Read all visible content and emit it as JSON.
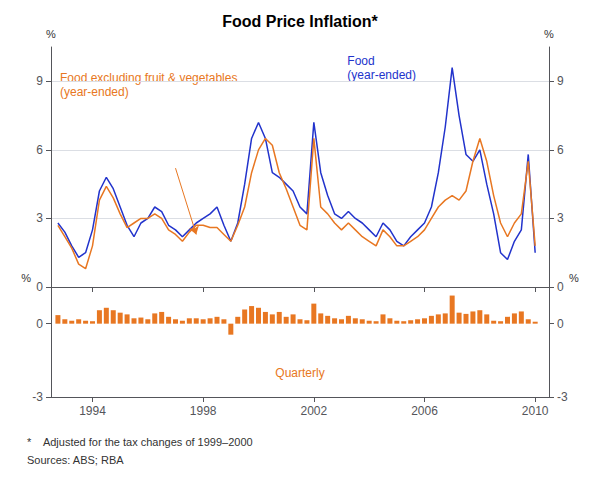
{
  "chart_data": [
    {
      "type": "line",
      "title": "Food Price Inflation*",
      "x": [
        1992.75,
        1993.0,
        1993.25,
        1993.5,
        1993.75,
        1994.0,
        1994.25,
        1994.5,
        1994.75,
        1995.0,
        1995.25,
        1995.5,
        1995.75,
        1996.0,
        1996.25,
        1996.5,
        1996.75,
        1997.0,
        1997.25,
        1997.5,
        1997.75,
        1998.0,
        1998.25,
        1998.5,
        1998.75,
        1999.0,
        1999.25,
        1999.5,
        1999.75,
        2000.0,
        2000.25,
        2000.5,
        2000.75,
        2001.0,
        2001.25,
        2001.5,
        2001.75,
        2002.0,
        2002.25,
        2002.5,
        2002.75,
        2003.0,
        2003.25,
        2003.5,
        2003.75,
        2004.0,
        2004.25,
        2004.5,
        2004.75,
        2005.0,
        2005.25,
        2005.5,
        2005.75,
        2006.0,
        2006.25,
        2006.5,
        2006.75,
        2007.0,
        2007.25,
        2007.5,
        2007.75,
        2008.0,
        2008.25,
        2008.5,
        2008.75,
        2009.0,
        2009.25,
        2009.5,
        2009.75,
        2010.0
      ],
      "series": [
        {
          "name": "Food\n(year-ended)",
          "color": "#2233CC",
          "values": [
            2.8,
            2.4,
            1.8,
            1.3,
            1.5,
            2.5,
            4.2,
            4.8,
            4.3,
            3.5,
            2.7,
            2.2,
            2.8,
            3.0,
            3.5,
            3.3,
            2.7,
            2.5,
            2.2,
            2.5,
            2.8,
            3.0,
            3.2,
            3.5,
            2.7,
            2.0,
            2.8,
            4.5,
            6.5,
            7.2,
            6.5,
            5.0,
            4.8,
            4.5,
            4.2,
            3.5,
            3.2,
            7.2,
            5.0,
            4.0,
            3.2,
            3.0,
            3.3,
            3.0,
            2.8,
            2.5,
            2.2,
            2.8,
            2.5,
            2.0,
            1.8,
            2.2,
            2.5,
            2.8,
            3.5,
            5.0,
            7.0,
            9.6,
            7.5,
            5.8,
            5.5,
            6.0,
            4.5,
            3.2,
            1.5,
            1.2,
            2.0,
            2.5,
            5.8,
            1.5
          ]
        },
        {
          "name": "Food excluding fruit & vegetables\n(year-ended)",
          "color": "#E87722",
          "values": [
            2.7,
            2.2,
            1.7,
            1.0,
            0.8,
            1.8,
            3.8,
            4.4,
            3.9,
            3.2,
            2.6,
            2.8,
            3.0,
            3.0,
            3.2,
            3.0,
            2.5,
            2.3,
            2.0,
            2.4,
            2.7,
            2.7,
            2.6,
            2.6,
            2.3,
            2.0,
            2.7,
            3.5,
            5.0,
            6.0,
            6.5,
            6.2,
            5.0,
            4.3,
            3.5,
            2.7,
            2.5,
            6.5,
            3.5,
            3.2,
            2.8,
            2.5,
            2.8,
            2.5,
            2.2,
            2.0,
            1.8,
            2.5,
            2.2,
            1.8,
            1.8,
            2.0,
            2.2,
            2.5,
            3.0,
            3.5,
            3.8,
            4.0,
            3.8,
            4.2,
            5.5,
            6.5,
            5.5,
            4.0,
            2.8,
            2.2,
            2.8,
            3.2,
            5.5,
            1.8
          ]
        }
      ],
      "xlim": [
        1992.5,
        2010.5
      ],
      "xticks": [
        1994,
        1998,
        2002,
        2006,
        2010
      ],
      "ylim": [
        0,
        10.5
      ],
      "yticks": [
        0,
        3,
        6,
        9
      ],
      "y2lim": [
        0,
        10.5
      ],
      "y2ticks": [
        0,
        3,
        6,
        9
      ],
      "ylabel": "%",
      "y2label": "%",
      "grid": true,
      "tick_labels": "y",
      "annotations": [
        {
          "from": [
            1997.0,
            5.2
          ],
          "to": [
            1997.75,
            2.3
          ],
          "color": "#E87722"
        }
      ]
    },
    {
      "type": "bar",
      "x": [
        1992.75,
        1993.0,
        1993.25,
        1993.5,
        1993.75,
        1994.0,
        1994.25,
        1994.5,
        1994.75,
        1995.0,
        1995.25,
        1995.5,
        1995.75,
        1996.0,
        1996.25,
        1996.5,
        1996.75,
        1997.0,
        1997.25,
        1997.5,
        1997.75,
        1998.0,
        1998.25,
        1998.5,
        1998.75,
        1999.0,
        1999.25,
        1999.5,
        1999.75,
        2000.0,
        2000.25,
        2000.5,
        2000.75,
        2001.0,
        2001.25,
        2001.5,
        2001.75,
        2002.0,
        2002.25,
        2002.5,
        2002.75,
        2003.0,
        2003.25,
        2003.5,
        2003.75,
        2004.0,
        2004.25,
        2004.5,
        2004.75,
        2005.0,
        2005.25,
        2005.5,
        2005.75,
        2006.0,
        2006.25,
        2006.5,
        2006.75,
        2007.0,
        2007.25,
        2007.5,
        2007.75,
        2008.0,
        2008.25,
        2008.5,
        2008.75,
        2009.0,
        2009.25,
        2009.5,
        2009.75,
        2010.0
      ],
      "values": [
        0.35,
        0.18,
        0.12,
        0.18,
        0.12,
        0.1,
        0.55,
        0.65,
        0.55,
        0.45,
        0.38,
        0.22,
        0.25,
        0.18,
        0.42,
        0.48,
        0.28,
        0.18,
        0.12,
        0.22,
        0.22,
        0.18,
        0.22,
        0.28,
        0.18,
        -0.45,
        0.28,
        0.58,
        0.72,
        0.65,
        0.48,
        0.38,
        0.48,
        0.28,
        0.38,
        0.18,
        0.14,
        0.82,
        0.42,
        0.32,
        0.22,
        0.18,
        0.32,
        0.22,
        0.18,
        0.12,
        0.1,
        0.38,
        0.22,
        0.12,
        0.1,
        0.14,
        0.18,
        0.22,
        0.32,
        0.38,
        0.42,
        1.15,
        0.45,
        0.4,
        0.5,
        0.55,
        0.38,
        0.12,
        0.1,
        0.28,
        0.42,
        0.5,
        0.18,
        0.08
      ],
      "color": "#E87722",
      "xlim": [
        1992.5,
        2010.5
      ],
      "xticks": [
        1994,
        1998,
        2002,
        2006,
        2010
      ],
      "ylim": [
        -3,
        1.5
      ],
      "yticks": [
        -3,
        0
      ],
      "y2lim": [
        -3,
        1.5
      ],
      "y2ticks": [
        -3,
        0
      ],
      "ylabel": "%",
      "y2label": "%",
      "grid": false,
      "annotations": [
        {
          "text": "Quarterly",
          "color": "#E87722"
        },
        {
          "text": "*    Adjusted for the tax changes of 1999–2000"
        },
        {
          "text": "Sources: ABS; RBA"
        }
      ]
    }
  ]
}
